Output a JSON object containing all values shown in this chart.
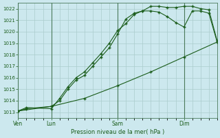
{
  "bg_color": "#cce8ee",
  "grid_color": "#aacccc",
  "line_color": "#1a5c1a",
  "marker_color": "#1a5c1a",
  "xlabel": "Pression niveau de la mer( hPa )",
  "xlabel_color": "#1a5c1a",
  "ylim": [
    1012.5,
    1022.5
  ],
  "yticks": [
    1013,
    1014,
    1015,
    1016,
    1017,
    1018,
    1019,
    1020,
    1021,
    1022
  ],
  "day_labels": [
    "Ven",
    "Lun",
    "Sam",
    "Dim"
  ],
  "day_positions": [
    0,
    24,
    72,
    120
  ],
  "total_hours": 144,
  "series1_x": [
    0,
    6,
    24,
    30,
    36,
    42,
    48,
    54,
    60,
    66,
    72,
    78,
    84,
    90,
    96,
    102,
    108,
    114,
    120,
    126,
    132,
    138,
    144
  ],
  "series1_y": [
    1013.1,
    1013.4,
    1013.3,
    1014.2,
    1015.2,
    1016.0,
    1016.5,
    1017.3,
    1018.1,
    1019.0,
    1020.1,
    1020.7,
    1021.5,
    1021.8,
    1021.8,
    1021.7,
    1021.3,
    1020.8,
    1020.4,
    1021.8,
    1021.8,
    1021.6,
    1019.1
  ],
  "series2_x": [
    0,
    6,
    24,
    30,
    36,
    42,
    48,
    54,
    60,
    66,
    72,
    78,
    84,
    90,
    96,
    102,
    108,
    114,
    120,
    126,
    132,
    138,
    144
  ],
  "series2_y": [
    1013.1,
    1013.3,
    1013.5,
    1014.0,
    1015.0,
    1015.8,
    1016.2,
    1017.0,
    1017.8,
    1018.6,
    1019.8,
    1021.1,
    1021.6,
    1021.8,
    1022.2,
    1022.2,
    1022.1,
    1022.1,
    1022.2,
    1022.2,
    1022.0,
    1021.9,
    1019.2
  ],
  "series3_x": [
    0,
    24,
    48,
    72,
    96,
    120,
    144
  ],
  "series3_y": [
    1013.1,
    1013.5,
    1014.2,
    1015.3,
    1016.5,
    1017.8,
    1019.1
  ]
}
